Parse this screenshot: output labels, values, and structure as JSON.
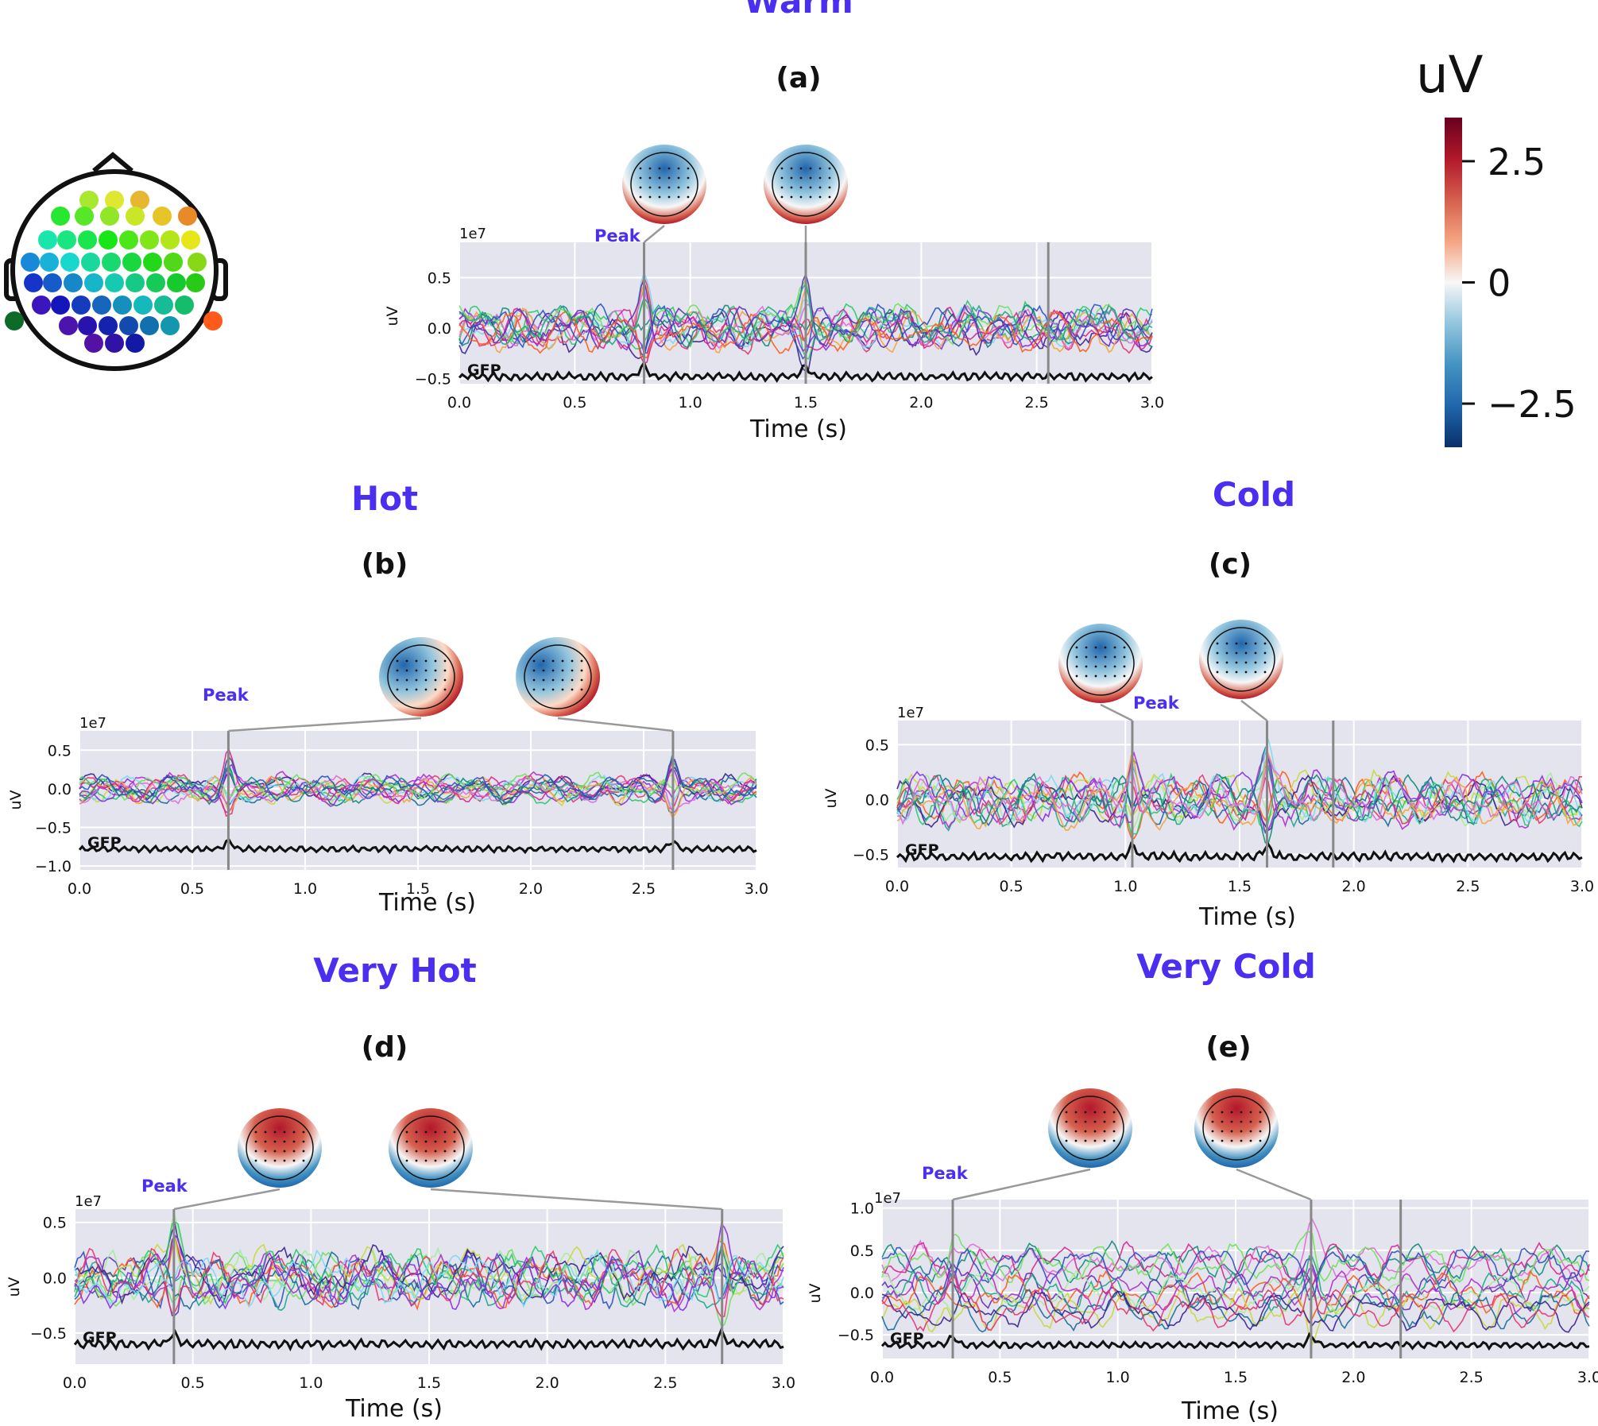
{
  "chart_data": [
    {
      "id": "a",
      "type": "line",
      "condition": "Warm",
      "panel_label": "(a)",
      "scale": "1e7",
      "xlabel": "Time (s)",
      "ylabel": "uV",
      "x_ticks": [
        "0.0",
        "0.5",
        "1.0",
        "1.5",
        "2.0",
        "2.5",
        "3.0"
      ],
      "xlim": [
        0,
        3
      ],
      "y_ticks": [
        {
          "v": 0.5,
          "label": "0.5"
        },
        {
          "v": 0.0,
          "label": "0.0"
        },
        {
          "v": -0.5,
          "label": "−0.5"
        }
      ],
      "ylim": [
        -0.55,
        0.85
      ],
      "gfp_label": "GFP",
      "gfp_level": -0.48,
      "peak_label": "Peak",
      "peak_times": [
        0.8,
        1.5
      ],
      "marker_times": [
        0.8,
        1.5,
        2.55
      ],
      "topomaps": [
        {
          "time": 0.8,
          "pattern": "frontal-negative"
        },
        {
          "time": 1.5,
          "pattern": "frontal-negative"
        }
      ],
      "noise_amp": 0.22,
      "trend": 0
    },
    {
      "id": "b",
      "type": "line",
      "condition": "Hot",
      "panel_label": "(b)",
      "scale": "1e7",
      "xlabel": "Time (s)",
      "ylabel": "uV",
      "x_ticks": [
        "0.0",
        "0.5",
        "1.0",
        "1.5",
        "2.0",
        "2.5",
        "3.0"
      ],
      "xlim": [
        0,
        3
      ],
      "y_ticks": [
        {
          "v": 0.5,
          "label": "0.5"
        },
        {
          "v": 0.0,
          "label": "0.0"
        },
        {
          "v": -0.5,
          "label": "−0.5"
        },
        {
          "v": -1.0,
          "label": "−1.0"
        }
      ],
      "ylim": [
        -1.05,
        0.75
      ],
      "gfp_label": "GFP",
      "gfp_level": -0.78,
      "peak_label": "Peak",
      "peak_times": [
        0.66,
        2.63
      ],
      "marker_times": [
        0.66,
        2.63
      ],
      "topomaps": [
        {
          "time": 0.66,
          "pattern": "right-positive"
        },
        {
          "time": 2.63,
          "pattern": "right-positive"
        }
      ],
      "noise_amp": 0.18,
      "trend": 0
    },
    {
      "id": "c",
      "type": "line",
      "condition": "Cold",
      "panel_label": "(c)",
      "scale": "1e7",
      "xlabel": "Time (s)",
      "ylabel": "uV",
      "x_ticks": [
        "0.0",
        "0.5",
        "1.0",
        "1.5",
        "2.0",
        "2.5",
        "3.0"
      ],
      "xlim": [
        0,
        3
      ],
      "y_ticks": [
        {
          "v": 0.5,
          "label": "0.5"
        },
        {
          "v": 0.0,
          "label": "0.0"
        },
        {
          "v": -0.5,
          "label": "−0.5"
        }
      ],
      "ylim": [
        -0.62,
        0.72
      ],
      "gfp_label": "GFP",
      "gfp_level": -0.52,
      "peak_label": "Peak",
      "peak_times": [
        1.03,
        1.62
      ],
      "marker_times": [
        1.03,
        1.62,
        1.91
      ],
      "topomaps": [
        {
          "time": 1.03,
          "pattern": "frontal-negative"
        },
        {
          "time": 1.62,
          "pattern": "frontal-negative"
        }
      ],
      "noise_amp": 0.24,
      "trend": 0
    },
    {
      "id": "d",
      "type": "line",
      "condition": "Very Hot",
      "panel_label": "(d)",
      "scale": "1e7",
      "xlabel": "Time (s)",
      "ylabel": "uV",
      "x_ticks": [
        "0.0",
        "0.5",
        "1.0",
        "1.5",
        "2.0",
        "2.5",
        "3.0"
      ],
      "xlim": [
        0,
        3
      ],
      "y_ticks": [
        {
          "v": 0.5,
          "label": "0.5"
        },
        {
          "v": 0.0,
          "label": "0.0"
        },
        {
          "v": -0.5,
          "label": "−0.5"
        }
      ],
      "ylim": [
        -0.78,
        0.62
      ],
      "gfp_label": "GFP",
      "gfp_level": -0.6,
      "peak_label": "Peak",
      "peak_times": [
        0.42,
        2.74
      ],
      "marker_times": [
        0.42,
        2.74
      ],
      "topomaps": [
        {
          "time": 0.42,
          "pattern": "frontal-positive"
        },
        {
          "time": 2.74,
          "pattern": "frontal-positive"
        }
      ],
      "noise_amp": 0.26,
      "trend": 0
    },
    {
      "id": "e",
      "type": "line",
      "condition": "Very Cold",
      "panel_label": "(e)",
      "scale": "1e7",
      "xlabel": "Time (s)",
      "ylabel": "uV",
      "x_ticks": [
        "0.0",
        "0.5",
        "1.0",
        "1.5",
        "2.0",
        "2.5",
        "3.0"
      ],
      "xlim": [
        0,
        3
      ],
      "y_ticks": [
        {
          "v": 1.0,
          "label": "1.0"
        },
        {
          "v": 0.5,
          "label": "0.5"
        },
        {
          "v": 0.0,
          "label": "0.0"
        },
        {
          "v": -0.5,
          "label": "−0.5"
        }
      ],
      "ylim": [
        -0.78,
        1.1
      ],
      "gfp_label": "GFP",
      "gfp_level": -0.62,
      "peak_label": "Peak",
      "peak_times": [
        0.3,
        1.82
      ],
      "marker_times": [
        0.3,
        1.82,
        2.2
      ],
      "topomaps": [
        {
          "time": 0.3,
          "pattern": "frontal-positive"
        },
        {
          "time": 1.82,
          "pattern": "frontal-positive"
        }
      ],
      "noise_amp": 0.25,
      "trend": 0.35
    }
  ],
  "colorbar": {
    "title": "uV",
    "ticks": [
      {
        "v": 2.5,
        "label": "2.5"
      },
      {
        "v": 0,
        "label": "0"
      },
      {
        "v": -2.5,
        "label": "−2.5"
      }
    ],
    "range": [
      -3.4,
      3.4
    ],
    "colors": [
      "#08306b",
      "#2166ac",
      "#4393c3",
      "#92c5de",
      "#f7f7f7",
      "#f4a582",
      "#d6604d",
      "#b2182b",
      "#67001f"
    ]
  },
  "sensor_legend": {
    "description": "sensor layout",
    "colors": [
      "#2ad94a",
      "#46e07a",
      "#2ae6a8",
      "#88e85a",
      "#c4e640",
      "#e8d23a"
    ]
  }
}
